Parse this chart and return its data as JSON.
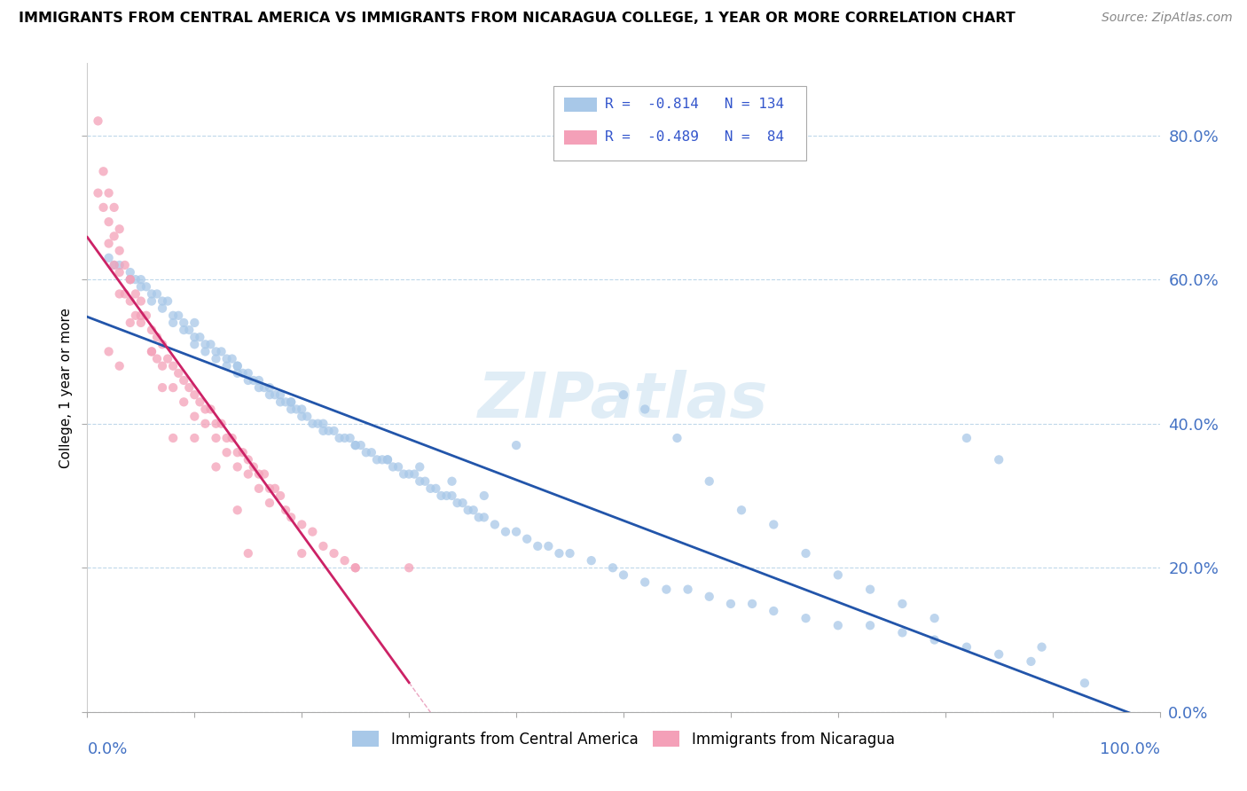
{
  "title": "IMMIGRANTS FROM CENTRAL AMERICA VS IMMIGRANTS FROM NICARAGUA COLLEGE, 1 YEAR OR MORE CORRELATION CHART",
  "source": "Source: ZipAtlas.com",
  "ylabel": "College, 1 year or more",
  "legend1_label": "Immigrants from Central America",
  "legend2_label": "Immigrants from Nicaragua",
  "R1": -0.814,
  "N1": 134,
  "R2": -0.489,
  "N2": 84,
  "blue_color": "#a8c8e8",
  "pink_color": "#f4a0b8",
  "blue_line_color": "#2255aa",
  "pink_line_color": "#cc2266",
  "yticks": [
    0.0,
    0.2,
    0.4,
    0.6,
    0.8
  ],
  "blue_scatter_x": [
    0.02,
    0.025,
    0.03,
    0.04,
    0.04,
    0.045,
    0.05,
    0.05,
    0.055,
    0.06,
    0.06,
    0.065,
    0.07,
    0.07,
    0.075,
    0.08,
    0.08,
    0.085,
    0.09,
    0.09,
    0.095,
    0.1,
    0.1,
    0.1,
    0.105,
    0.11,
    0.11,
    0.115,
    0.12,
    0.12,
    0.125,
    0.13,
    0.13,
    0.135,
    0.14,
    0.14,
    0.145,
    0.15,
    0.15,
    0.155,
    0.16,
    0.16,
    0.165,
    0.17,
    0.17,
    0.175,
    0.18,
    0.18,
    0.185,
    0.19,
    0.19,
    0.195,
    0.2,
    0.2,
    0.205,
    0.21,
    0.215,
    0.22,
    0.225,
    0.23,
    0.235,
    0.24,
    0.245,
    0.25,
    0.255,
    0.26,
    0.265,
    0.27,
    0.275,
    0.28,
    0.285,
    0.29,
    0.295,
    0.3,
    0.305,
    0.31,
    0.315,
    0.32,
    0.325,
    0.33,
    0.335,
    0.34,
    0.345,
    0.35,
    0.355,
    0.36,
    0.365,
    0.37,
    0.38,
    0.39,
    0.4,
    0.41,
    0.42,
    0.43,
    0.44,
    0.45,
    0.47,
    0.49,
    0.5,
    0.52,
    0.54,
    0.56,
    0.58,
    0.6,
    0.62,
    0.64,
    0.67,
    0.7,
    0.73,
    0.76,
    0.79,
    0.82,
    0.85,
    0.88,
    0.14,
    0.19,
    0.22,
    0.25,
    0.28,
    0.31,
    0.34,
    0.37,
    0.4,
    0.5,
    0.52,
    0.55,
    0.58,
    0.61,
    0.64,
    0.67,
    0.7,
    0.73,
    0.76,
    0.79,
    0.82,
    0.85,
    0.89,
    0.93
  ],
  "blue_scatter_y": [
    0.63,
    0.62,
    0.62,
    0.61,
    0.6,
    0.6,
    0.6,
    0.59,
    0.59,
    0.58,
    0.57,
    0.58,
    0.57,
    0.56,
    0.57,
    0.55,
    0.54,
    0.55,
    0.54,
    0.53,
    0.53,
    0.54,
    0.52,
    0.51,
    0.52,
    0.51,
    0.5,
    0.51,
    0.5,
    0.49,
    0.5,
    0.49,
    0.48,
    0.49,
    0.48,
    0.47,
    0.47,
    0.47,
    0.46,
    0.46,
    0.46,
    0.45,
    0.45,
    0.45,
    0.44,
    0.44,
    0.44,
    0.43,
    0.43,
    0.43,
    0.42,
    0.42,
    0.42,
    0.41,
    0.41,
    0.4,
    0.4,
    0.4,
    0.39,
    0.39,
    0.38,
    0.38,
    0.38,
    0.37,
    0.37,
    0.36,
    0.36,
    0.35,
    0.35,
    0.35,
    0.34,
    0.34,
    0.33,
    0.33,
    0.33,
    0.32,
    0.32,
    0.31,
    0.31,
    0.3,
    0.3,
    0.3,
    0.29,
    0.29,
    0.28,
    0.28,
    0.27,
    0.27,
    0.26,
    0.25,
    0.25,
    0.24,
    0.23,
    0.23,
    0.22,
    0.22,
    0.21,
    0.2,
    0.19,
    0.18,
    0.17,
    0.17,
    0.16,
    0.15,
    0.15,
    0.14,
    0.13,
    0.12,
    0.12,
    0.11,
    0.1,
    0.09,
    0.08,
    0.07,
    0.48,
    0.43,
    0.39,
    0.37,
    0.35,
    0.34,
    0.32,
    0.3,
    0.37,
    0.44,
    0.42,
    0.38,
    0.32,
    0.28,
    0.26,
    0.22,
    0.19,
    0.17,
    0.15,
    0.13,
    0.38,
    0.35,
    0.09,
    0.04
  ],
  "pink_scatter_x": [
    0.01,
    0.01,
    0.015,
    0.02,
    0.02,
    0.025,
    0.025,
    0.03,
    0.03,
    0.03,
    0.035,
    0.035,
    0.04,
    0.04,
    0.04,
    0.045,
    0.045,
    0.05,
    0.05,
    0.055,
    0.06,
    0.06,
    0.065,
    0.065,
    0.07,
    0.07,
    0.075,
    0.08,
    0.08,
    0.085,
    0.09,
    0.09,
    0.095,
    0.1,
    0.1,
    0.105,
    0.11,
    0.11,
    0.115,
    0.12,
    0.12,
    0.125,
    0.13,
    0.13,
    0.135,
    0.14,
    0.14,
    0.145,
    0.15,
    0.15,
    0.155,
    0.16,
    0.16,
    0.165,
    0.17,
    0.17,
    0.175,
    0.18,
    0.185,
    0.19,
    0.2,
    0.21,
    0.22,
    0.23,
    0.24,
    0.25,
    0.015,
    0.02,
    0.025,
    0.03,
    0.04,
    0.05,
    0.06,
    0.07,
    0.08,
    0.1,
    0.12,
    0.14,
    0.02,
    0.03,
    0.15,
    0.2,
    0.25,
    0.3
  ],
  "pink_scatter_y": [
    0.82,
    0.72,
    0.7,
    0.68,
    0.65,
    0.66,
    0.62,
    0.64,
    0.61,
    0.58,
    0.62,
    0.58,
    0.6,
    0.57,
    0.54,
    0.58,
    0.55,
    0.57,
    0.54,
    0.55,
    0.53,
    0.5,
    0.52,
    0.49,
    0.51,
    0.48,
    0.49,
    0.48,
    0.45,
    0.47,
    0.46,
    0.43,
    0.45,
    0.44,
    0.41,
    0.43,
    0.42,
    0.4,
    0.42,
    0.4,
    0.38,
    0.4,
    0.38,
    0.36,
    0.38,
    0.36,
    0.34,
    0.36,
    0.35,
    0.33,
    0.34,
    0.33,
    0.31,
    0.33,
    0.31,
    0.29,
    0.31,
    0.3,
    0.28,
    0.27,
    0.26,
    0.25,
    0.23,
    0.22,
    0.21,
    0.2,
    0.75,
    0.72,
    0.7,
    0.67,
    0.6,
    0.55,
    0.5,
    0.45,
    0.38,
    0.38,
    0.34,
    0.28,
    0.5,
    0.48,
    0.22,
    0.22,
    0.2,
    0.2
  ]
}
